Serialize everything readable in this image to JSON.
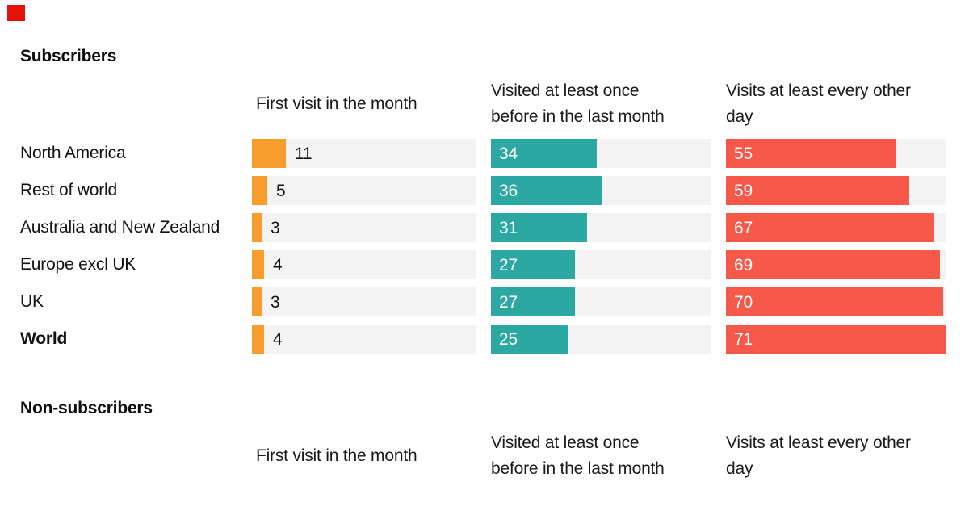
{
  "brand_mark_color": "#e3120b",
  "background_color": "#ffffff",
  "track_color": "#f3f3f3",
  "sections": {
    "subscribers": {
      "title": "Subscribers"
    },
    "non_subscribers": {
      "title": "Non-subscribers"
    }
  },
  "columns": [
    {
      "id": "first-visit",
      "lines": [
        "First visit in the month",
        ""
      ]
    },
    {
      "id": "visited-before",
      "lines": [
        "Visited at least once",
        "before in the last month"
      ]
    },
    {
      "id": "every-other-day",
      "lines": [
        "Visits at least every other",
        "day"
      ]
    }
  ],
  "chart_data": {
    "type": "bar",
    "orientation": "horizontal",
    "title": "Subscribers",
    "categories": [
      "North America",
      "Rest of world",
      "Australia and New Zealand",
      "Europe excl UK",
      "UK",
      "World"
    ],
    "bold_categories": [
      "World"
    ],
    "series": [
      {
        "name": "First visit in the month",
        "color": "#f89c2d",
        "values": [
          11,
          5,
          3,
          4,
          3,
          4
        ],
        "value_label_position": "outside",
        "value_label_color": "#121212"
      },
      {
        "name": "Visited at least once before in the last month",
        "color": "#2ba8a2",
        "values": [
          34,
          36,
          31,
          27,
          27,
          25
        ],
        "value_label_position": "inside",
        "value_label_color": "#ffffff"
      },
      {
        "name": "Visits at least every other day",
        "color": "#f6584a",
        "values": [
          55,
          59,
          67,
          69,
          70,
          71
        ],
        "value_label_position": "inside",
        "value_label_color": "#ffffff"
      }
    ],
    "scale_max": 71,
    "xlim": [
      0,
      71
    ],
    "grid": false,
    "legend": false,
    "second_section_title": "Non-subscribers",
    "second_section_note": "column headers repeated, bars cut off below image edge"
  }
}
